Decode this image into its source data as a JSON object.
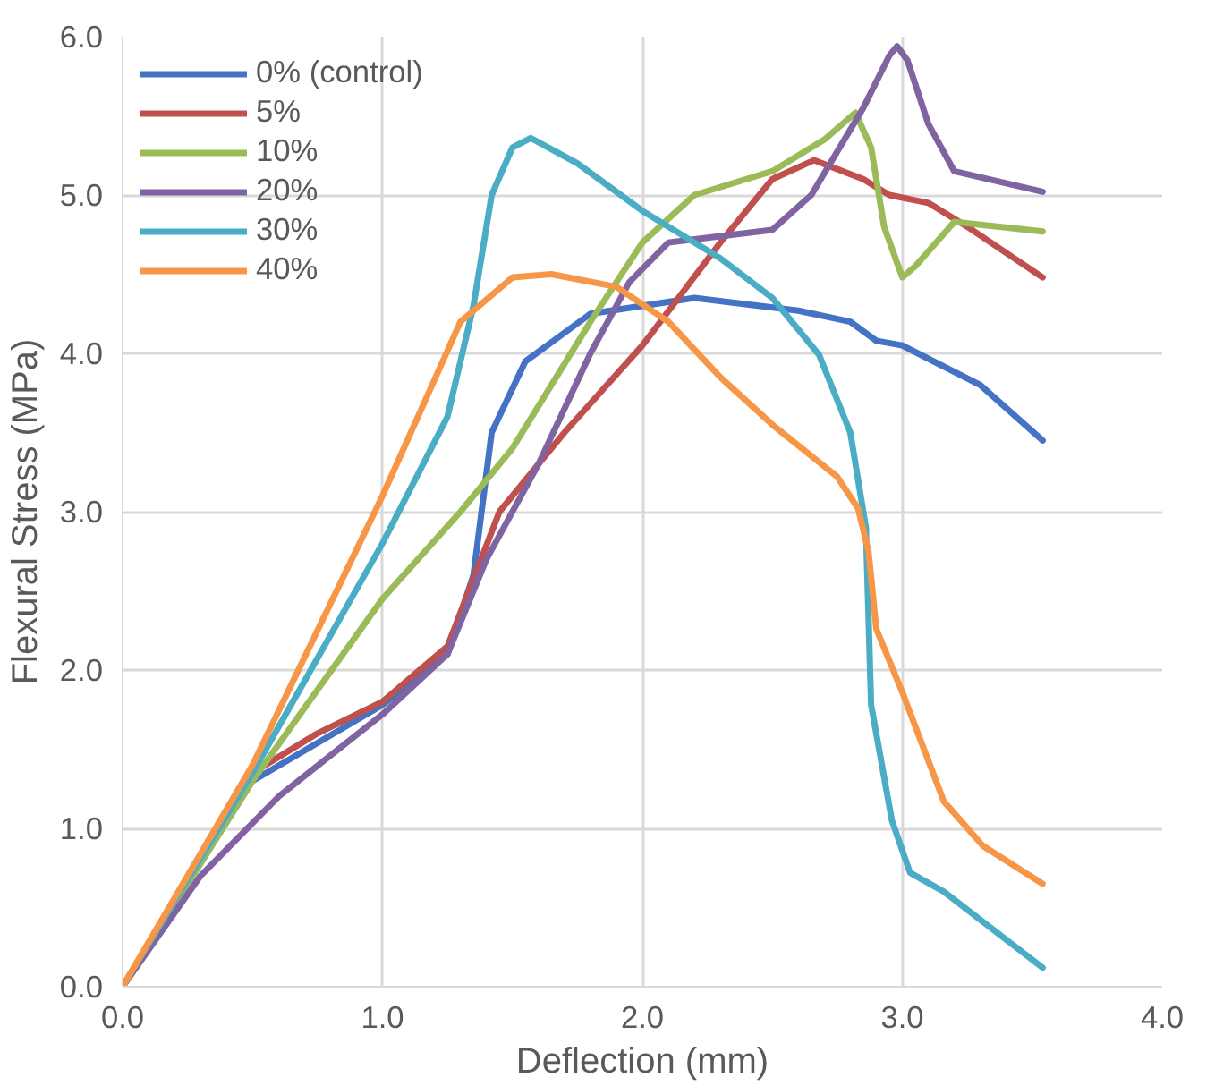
{
  "chart_data": {
    "type": "line",
    "xlabel": "Deflection (mm)",
    "ylabel": "Flexural Stress (MPa)",
    "xlim": [
      0,
      4
    ],
    "ylim": [
      0,
      6
    ],
    "xticks": [
      {
        "value": 0,
        "label": "0.0"
      },
      {
        "value": 1,
        "label": "1.0"
      },
      {
        "value": 2,
        "label": "2.0"
      },
      {
        "value": 3,
        "label": "3.0"
      },
      {
        "value": 4,
        "label": "4.0"
      }
    ],
    "yticks": [
      {
        "value": 0,
        "label": "0.0"
      },
      {
        "value": 1,
        "label": "1.0"
      },
      {
        "value": 2,
        "label": "2.0"
      },
      {
        "value": 3,
        "label": "3.0"
      },
      {
        "value": 4,
        "label": "4.0"
      },
      {
        "value": 5,
        "label": "5.0"
      },
      {
        "value": 6,
        "label": "6.0"
      }
    ],
    "grid": true,
    "legend": "top left",
    "marker": "none",
    "line_style": "solid",
    "series": [
      {
        "name": "0% (control)",
        "color": "#4472c4",
        "x": [
          0,
          0.5,
          1.0,
          1.25,
          1.35,
          1.42,
          1.55,
          1.8,
          2.2,
          2.6,
          2.8,
          2.9,
          3.0,
          3.3,
          3.54
        ],
        "values": [
          0,
          1.3,
          1.78,
          2.1,
          2.6,
          3.5,
          3.95,
          4.25,
          4.35,
          4.27,
          4.2,
          4.08,
          4.05,
          3.8,
          3.45
        ]
      },
      {
        "name": "5%",
        "color": "#c0504d",
        "x": [
          0,
          0.5,
          0.75,
          1.0,
          1.25,
          1.45,
          1.7,
          2.0,
          2.3,
          2.5,
          2.66,
          2.85,
          2.95,
          3.1,
          3.25,
          3.54
        ],
        "values": [
          0,
          1.35,
          1.6,
          1.8,
          2.15,
          3.0,
          3.5,
          4.05,
          4.7,
          5.1,
          5.22,
          5.1,
          5.0,
          4.95,
          4.8,
          4.48
        ]
      },
      {
        "name": "10%",
        "color": "#9bbb59",
        "x": [
          0,
          0.5,
          1.0,
          1.3,
          1.5,
          1.8,
          2.0,
          2.2,
          2.5,
          2.7,
          2.82,
          2.88,
          2.93,
          3.0,
          3.05,
          3.2,
          3.54
        ],
        "values": [
          0,
          1.3,
          2.45,
          3.0,
          3.4,
          4.2,
          4.7,
          5.0,
          5.15,
          5.35,
          5.52,
          5.3,
          4.8,
          4.48,
          4.55,
          4.83,
          4.77
        ]
      },
      {
        "name": "20%",
        "color": "#8064a2",
        "x": [
          0,
          0.3,
          0.6,
          1.0,
          1.25,
          1.4,
          1.6,
          1.8,
          1.95,
          2.1,
          2.5,
          2.65,
          2.85,
          2.95,
          2.98,
          3.02,
          3.1,
          3.2,
          3.54
        ],
        "values": [
          0,
          0.7,
          1.2,
          1.72,
          2.1,
          2.7,
          3.3,
          4.0,
          4.45,
          4.7,
          4.78,
          5.0,
          5.55,
          5.88,
          5.94,
          5.85,
          5.45,
          5.15,
          5.02
        ]
      },
      {
        "name": "30%",
        "color": "#4bacc6",
        "x": [
          0,
          0.5,
          1.0,
          1.25,
          1.35,
          1.42,
          1.5,
          1.57,
          1.75,
          2.0,
          2.3,
          2.5,
          2.68,
          2.8,
          2.86,
          2.88,
          2.96,
          3.03,
          3.16,
          3.54
        ],
        "values": [
          0,
          1.35,
          2.8,
          3.6,
          4.3,
          5.0,
          5.3,
          5.36,
          5.2,
          4.9,
          4.6,
          4.35,
          3.99,
          3.5,
          2.9,
          1.78,
          1.05,
          0.72,
          0.6,
          0.12
        ]
      },
      {
        "name": "40%",
        "color": "#f79646",
        "x": [
          0,
          0.5,
          1.0,
          1.3,
          1.5,
          1.65,
          1.9,
          2.1,
          2.3,
          2.5,
          2.75,
          2.83,
          2.87,
          2.9,
          3.0,
          3.16,
          3.31,
          3.54
        ],
        "values": [
          0,
          1.4,
          3.1,
          4.2,
          4.48,
          4.5,
          4.42,
          4.2,
          3.85,
          3.55,
          3.22,
          3.02,
          2.75,
          2.26,
          1.86,
          1.17,
          0.89,
          0.65
        ]
      }
    ]
  }
}
